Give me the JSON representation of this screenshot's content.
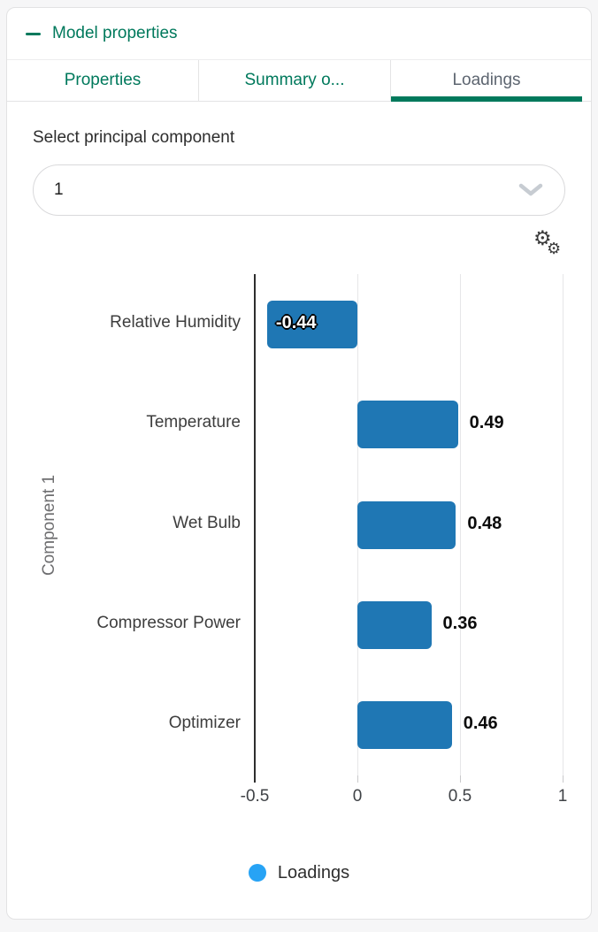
{
  "accent_color": "#00795c",
  "header": {
    "title": "Model properties"
  },
  "tabs": [
    {
      "label": "Properties",
      "active": false
    },
    {
      "label": "Summary o...",
      "active": false
    },
    {
      "label": "Loadings",
      "active": true
    }
  ],
  "select": {
    "label": "Select principal component",
    "value": "1"
  },
  "toolbar": {
    "settings_icon": "double-gear"
  },
  "chart_data": {
    "type": "bar",
    "orientation": "horizontal",
    "title": "",
    "xlabel": "",
    "ylabel": "Component 1",
    "categories": [
      "Relative Humidity",
      "Temperature",
      "Wet Bulb",
      "Compressor Power",
      "Optimizer"
    ],
    "values": [
      -0.44,
      0.49,
      0.48,
      0.36,
      0.46
    ],
    "value_labels": [
      "-0.44",
      "0.49",
      "0.48",
      "0.36",
      "0.46"
    ],
    "xlim": [
      -0.5,
      1.05
    ],
    "xticks": [
      -0.5,
      0,
      0.5,
      1
    ],
    "xtick_labels": [
      "-0.5",
      "0",
      "0.5",
      "1"
    ],
    "grid": true,
    "bar_color": "#1f77b4",
    "legend_position": "bottom",
    "legend": [
      {
        "label": "Loadings",
        "color": "#27a3f5"
      }
    ]
  }
}
